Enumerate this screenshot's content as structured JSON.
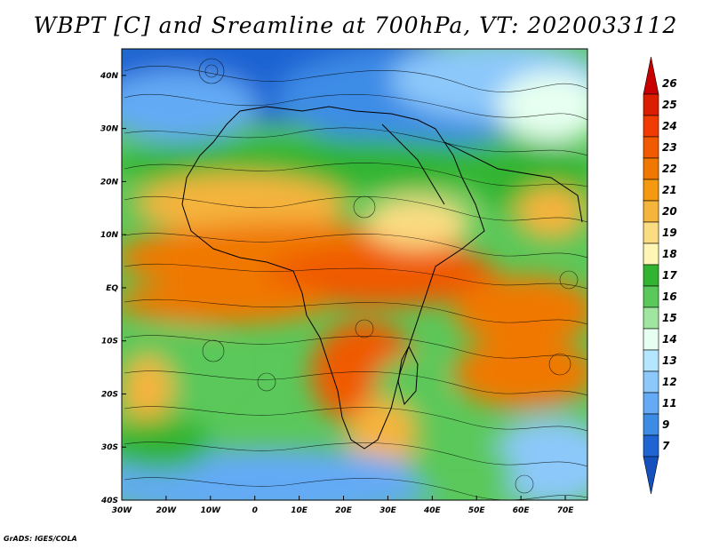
{
  "title": "WBPT [C] and Sreamline at 700hPa, VT: 2020033112",
  "credit": "GrADS: IGES/COLA",
  "map": {
    "lon_labels": [
      "30W",
      "20W",
      "10W",
      "0",
      "10E",
      "20E",
      "30E",
      "40E",
      "50E",
      "60E",
      "70E"
    ],
    "lat_labels": [
      "40N",
      "30N",
      "20N",
      "10N",
      "EQ",
      "10S",
      "20S",
      "30S",
      "40S"
    ],
    "lon_range": [
      -30,
      75
    ],
    "lat_range": [
      -40,
      45
    ]
  },
  "colorbar": {
    "levels": [
      "26",
      "25",
      "24",
      "23",
      "22",
      "21",
      "20",
      "19",
      "18",
      "17",
      "16",
      "15",
      "14",
      "13",
      "12",
      "11",
      "9",
      "7"
    ],
    "colors": [
      "#c80000",
      "#dc1e00",
      "#f03c00",
      "#f05a00",
      "#f07800",
      "#f59a10",
      "#f5b43c",
      "#fadc82",
      "#fff5b4",
      "#32b432",
      "#5ac85a",
      "#a0e6a0",
      "#e6fff0",
      "#b4e6ff",
      "#8cc8fa",
      "#64aaf5",
      "#3c8ce6",
      "#1e64d2",
      "#1450be"
    ]
  },
  "chart_data": {
    "type": "heatmap",
    "title": "WBPT [C] and Sreamline at 700hPa, VT: 2020033112",
    "variable": "WBPT",
    "units": "C",
    "level": "700hPa",
    "valid_time": "2020033112",
    "xlim": [
      -30,
      75
    ],
    "ylim": [
      -40,
      45
    ],
    "x_ticks": [
      -30,
      -20,
      -10,
      0,
      10,
      20,
      30,
      40,
      50,
      60,
      70
    ],
    "y_ticks": [
      40,
      30,
      20,
      10,
      0,
      -10,
      -20,
      -30,
      -40
    ],
    "color_levels": [
      7,
      9,
      11,
      12,
      13,
      14,
      15,
      16,
      17,
      18,
      19,
      20,
      21,
      22,
      23,
      24,
      25,
      26
    ],
    "overlay": "streamlines"
  }
}
